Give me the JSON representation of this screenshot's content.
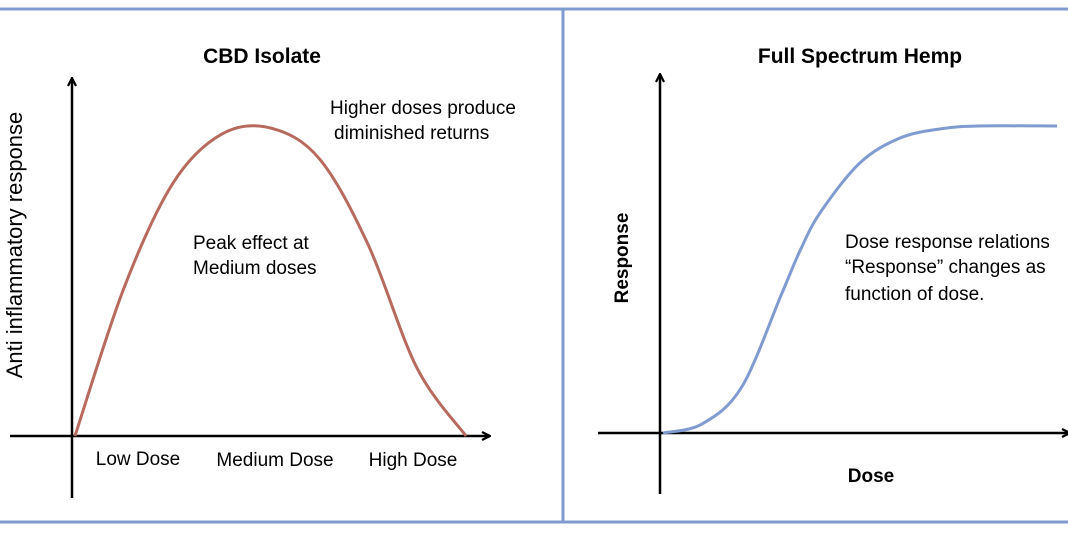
{
  "colors": {
    "frame": "#7f9bd0",
    "left_curve": "#b76a5e",
    "right_curve": "#7f9bd0",
    "axis": "#000000"
  },
  "chart_data": [
    {
      "type": "line",
      "title": "CBD Isolate",
      "xlabel": "",
      "ylabel": "Anti inflammatory response",
      "x_tick_labels": [
        "Low Dose",
        "Medium Dose",
        "High Dose"
      ],
      "annotations": [
        {
          "line1": "Higher doses produce",
          "line2": "diminished returns"
        },
        {
          "line1": "Peak effect at",
          "line2": "Medium doses"
        }
      ],
      "x": [
        0,
        0.125,
        0.25,
        0.375,
        0.5,
        0.625,
        0.75,
        0.875,
        1
      ],
      "values": [
        0,
        0.48,
        0.82,
        0.98,
        1.0,
        0.9,
        0.62,
        0.22,
        0
      ],
      "xlim": [
        0,
        1
      ],
      "ylim": [
        0,
        1
      ],
      "grid": false
    },
    {
      "type": "line",
      "title": "Full Spectrum Hemp",
      "xlabel": "Dose",
      "ylabel": "Response",
      "annotations": [
        {
          "line1": "Dose response relations",
          "line2": "“Response” changes as",
          "line3": " function of dose."
        }
      ],
      "x": [
        0,
        0.1,
        0.2,
        0.3,
        0.35,
        0.4,
        0.5,
        0.6,
        0.7,
        0.8,
        1
      ],
      "values": [
        0,
        0.03,
        0.15,
        0.45,
        0.6,
        0.72,
        0.88,
        0.96,
        0.99,
        1.0,
        1.0
      ],
      "xlim": [
        0,
        1
      ],
      "ylim": [
        0,
        1
      ],
      "grid": false
    }
  ]
}
